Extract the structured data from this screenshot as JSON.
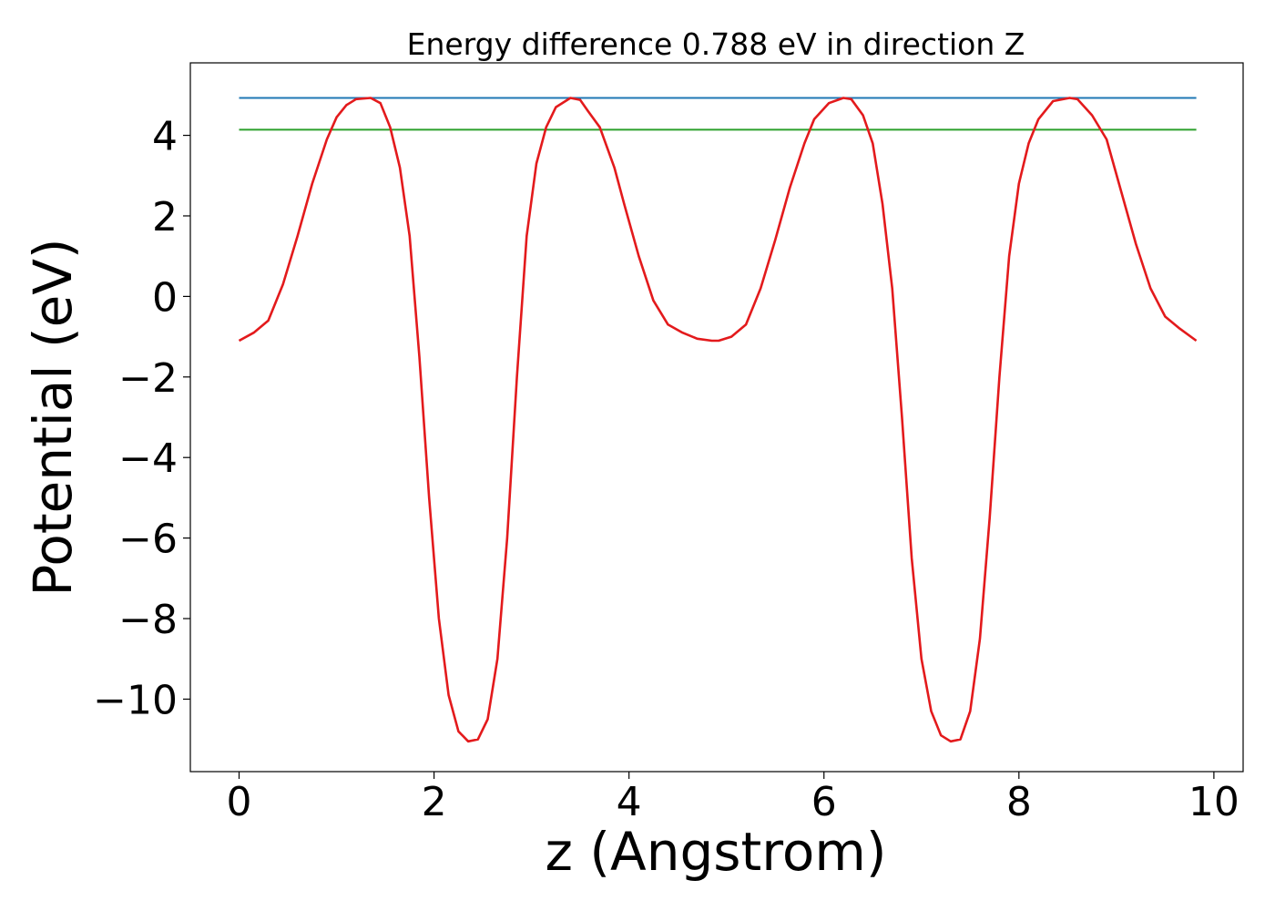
{
  "chart_data": {
    "type": "line",
    "title": "Energy difference 0.788 eV in direction Z",
    "xlabel": "z (Angstrom)",
    "ylabel": "Potential (eV)",
    "xlim": [
      -0.5,
      10.3
    ],
    "ylim": [
      -11.8,
      5.8
    ],
    "x_ticks": [
      0,
      2,
      4,
      6,
      8,
      10
    ],
    "x_tick_labels": [
      "0",
      "2",
      "4",
      "6",
      "8",
      "10"
    ],
    "y_ticks": [
      4,
      2,
      0,
      -2,
      -4,
      -6,
      -8,
      -10
    ],
    "y_tick_labels": [
      "4",
      "2",
      "0",
      "−2",
      "−4",
      "−6",
      "−8",
      "−10"
    ],
    "grid": false,
    "legend": "none",
    "series": [
      {
        "color": "#1f77b4",
        "x": [
          0,
          9.82
        ],
        "y": [
          4.93,
          4.93
        ]
      },
      {
        "color": "#2ca02c",
        "x": [
          0,
          9.82
        ],
        "y": [
          4.14,
          4.14
        ]
      },
      {
        "color": "#e31a1c",
        "x": [
          0,
          0.15,
          0.3,
          0.45,
          0.6,
          0.75,
          0.9,
          1.0,
          1.1,
          1.2,
          1.35,
          1.45,
          1.55,
          1.65,
          1.75,
          1.85,
          1.95,
          2.05,
          2.15,
          2.25,
          2.35,
          2.45,
          2.55,
          2.65,
          2.75,
          2.85,
          2.95,
          3.05,
          3.15,
          3.25,
          3.4,
          3.5,
          3.58,
          3.7,
          3.85,
          3.95,
          4.1,
          4.25,
          4.4,
          4.55,
          4.7,
          4.85,
          4.92,
          5.05,
          5.2,
          5.35,
          5.5,
          5.65,
          5.8,
          5.9,
          6.05,
          6.2,
          6.28,
          6.4,
          6.5,
          6.6,
          6.7,
          6.8,
          6.9,
          7.0,
          7.1,
          7.2,
          7.3,
          7.4,
          7.5,
          7.6,
          7.7,
          7.8,
          7.9,
          8.0,
          8.1,
          8.2,
          8.35,
          8.52,
          8.6,
          8.75,
          8.9,
          9.05,
          9.2,
          9.35,
          9.5,
          9.65,
          9.82
        ],
        "y": [
          -1.1,
          -0.9,
          -0.6,
          0.3,
          1.5,
          2.8,
          3.9,
          4.45,
          4.75,
          4.9,
          4.93,
          4.8,
          4.2,
          3.2,
          1.5,
          -1.5,
          -5.0,
          -8.0,
          -9.9,
          -10.8,
          -11.05,
          -11.0,
          -10.5,
          -9.0,
          -6.0,
          -2.0,
          1.5,
          3.3,
          4.2,
          4.7,
          4.93,
          4.88,
          4.6,
          4.2,
          3.2,
          2.3,
          1.0,
          -0.1,
          -0.7,
          -0.9,
          -1.05,
          -1.1,
          -1.1,
          -1.0,
          -0.7,
          0.2,
          1.4,
          2.7,
          3.8,
          4.4,
          4.8,
          4.93,
          4.9,
          4.5,
          3.8,
          2.3,
          0.2,
          -3.0,
          -6.5,
          -9.0,
          -10.3,
          -10.9,
          -11.05,
          -11.0,
          -10.3,
          -8.5,
          -5.5,
          -2.0,
          1.0,
          2.8,
          3.8,
          4.4,
          4.85,
          4.93,
          4.9,
          4.5,
          3.9,
          2.6,
          1.3,
          0.2,
          -0.5,
          -0.8,
          -1.1
        ]
      }
    ]
  }
}
